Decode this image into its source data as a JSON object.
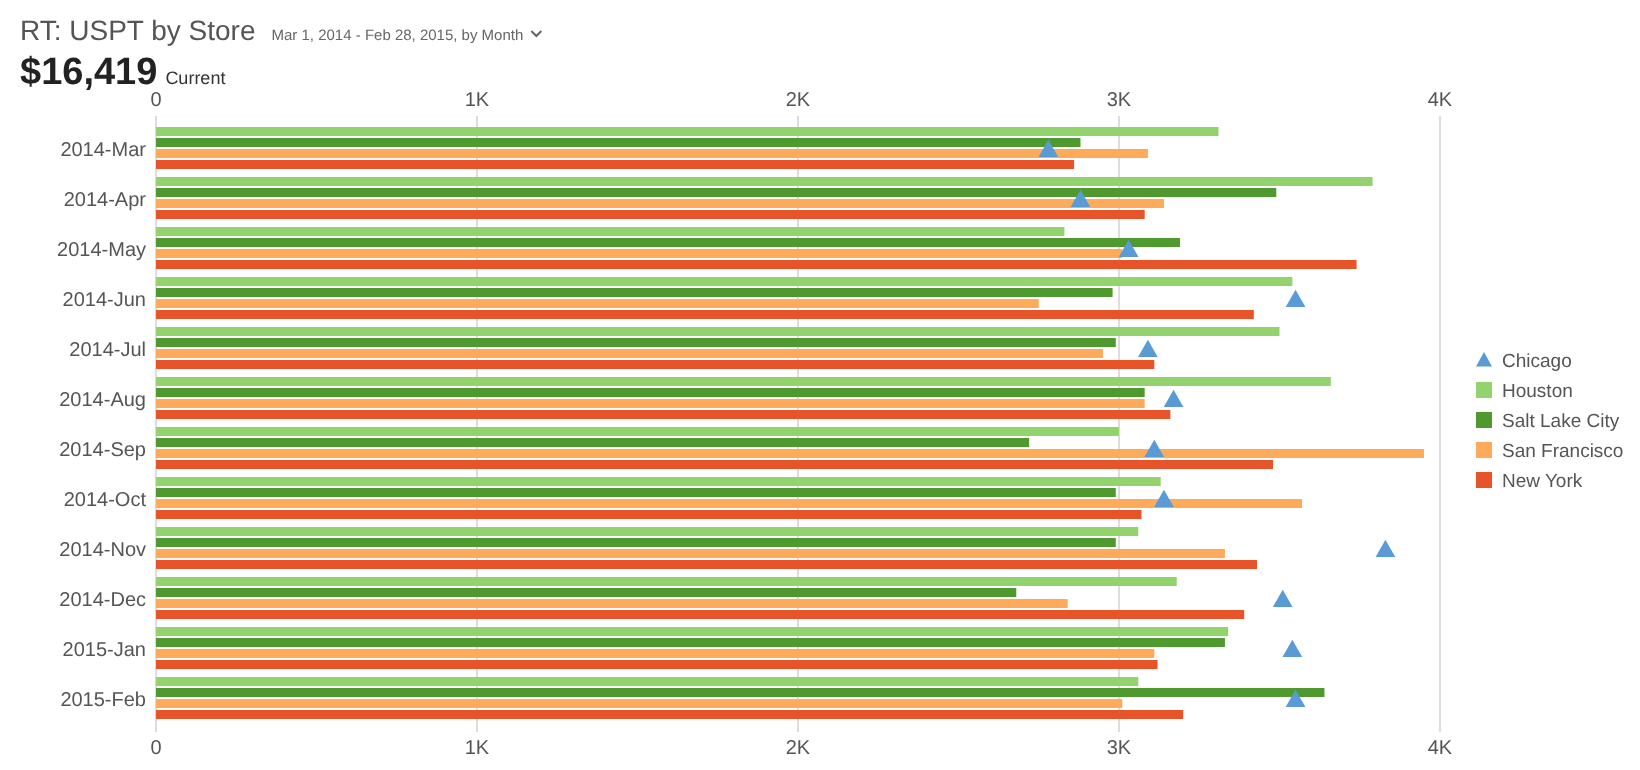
{
  "chart_data": {
    "type": "bar",
    "orientation": "horizontal",
    "title": "RT: USPT by Store",
    "subtitle": "Mar 1, 2014 - Feb 28, 2015, by Month",
    "annotations": [
      "$16,419",
      "Current"
    ],
    "categories": [
      "2014-Mar",
      "2014-Apr",
      "2014-May",
      "2014-Jun",
      "2014-Jul",
      "2014-Aug",
      "2014-Sep",
      "2014-Oct",
      "2014-Nov",
      "2014-Dec",
      "2015-Jan",
      "2015-Feb"
    ],
    "series": [
      {
        "name": "Chicago",
        "type": "scatter",
        "marker": "triangle",
        "color": "#5b9bd5",
        "values": [
          2780,
          2880,
          3030,
          3550,
          3090,
          3170,
          3110,
          3140,
          3830,
          3510,
          3540,
          3550
        ]
      },
      {
        "name": "Houston",
        "color": "#92d36e",
        "values": [
          3310,
          3790,
          2830,
          3540,
          3500,
          3660,
          3000,
          3130,
          3060,
          3180,
          3340,
          3060
        ]
      },
      {
        "name": "Salt Lake City",
        "color": "#4e9a2e",
        "values": [
          2880,
          3490,
          3190,
          2980,
          2990,
          3080,
          2720,
          2990,
          2990,
          2680,
          3330,
          3640
        ]
      },
      {
        "name": "San Francisco",
        "color": "#fdab5b",
        "values": [
          3090,
          3140,
          3010,
          2750,
          2950,
          3080,
          3950,
          3570,
          3330,
          2840,
          3110,
          3010
        ]
      },
      {
        "name": "New York",
        "color": "#e8542a",
        "values": [
          2860,
          3080,
          3740,
          3420,
          3110,
          3160,
          3480,
          3070,
          3430,
          3390,
          3120,
          3200
        ]
      }
    ],
    "xlim": [
      0,
      4000
    ],
    "xticks": [
      0,
      {
        "value": 1000,
        "label": "1K"
      },
      {
        "value": 2000,
        "label": "2K"
      },
      {
        "value": 3000,
        "label": "3K"
      },
      {
        "value": 4000,
        "label": "4K"
      }
    ],
    "x2lim": [
      0,
      4000
    ],
    "x2ticks": [
      0,
      {
        "value": 1000,
        "label": "1K"
      },
      {
        "value": 2000,
        "label": "2K"
      },
      {
        "value": 3000,
        "label": "3K"
      },
      {
        "value": 4000,
        "label": "4K"
      }
    ],
    "grid": "x",
    "legend": "right"
  }
}
